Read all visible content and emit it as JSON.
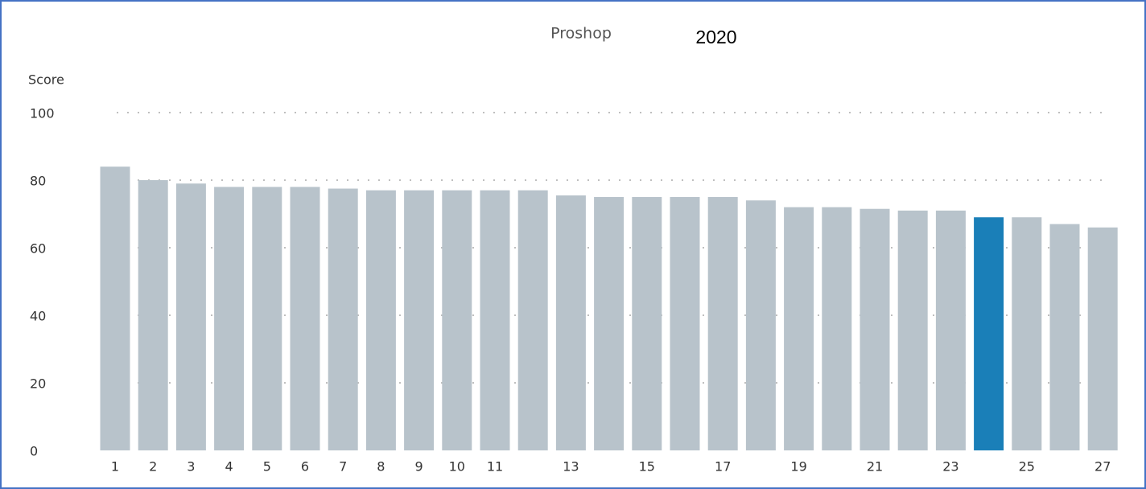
{
  "chart_data": {
    "type": "bar",
    "title": "Proshop",
    "subtitle": "2020",
    "y_label": "Score",
    "categories": [
      "1",
      "2",
      "3",
      "4",
      "5",
      "6",
      "7",
      "8",
      "9",
      "10",
      "11",
      null,
      "13",
      null,
      "15",
      null,
      "17",
      null,
      "19",
      null,
      "21",
      null,
      "23",
      null,
      "25",
      null,
      "27"
    ],
    "values": [
      84,
      80,
      79,
      78,
      78,
      78,
      77.5,
      77,
      77,
      77,
      77,
      77,
      75.5,
      75,
      75,
      75,
      75,
      74,
      72,
      72,
      71.5,
      71,
      71,
      69,
      69,
      67,
      66
    ],
    "colors": [
      "#b8c3cb",
      "#b8c3cb",
      "#b8c3cb",
      "#b8c3cb",
      "#b8c3cb",
      "#b8c3cb",
      "#b8c3cb",
      "#b8c3cb",
      "#b8c3cb",
      "#b8c3cb",
      "#b8c3cb",
      "#b8c3cb",
      "#b8c3cb",
      "#b8c3cb",
      "#b8c3cb",
      "#b8c3cb",
      "#b8c3cb",
      "#b8c3cb",
      "#b8c3cb",
      "#b8c3cb",
      "#b8c3cb",
      "#b8c3cb",
      "#b8c3cb",
      "#1a7fb8",
      "#b8c3cb",
      "#b8c3cb",
      "#b8c3cb"
    ],
    "ylim": [
      0,
      100
    ],
    "yticks": [
      0,
      20,
      40,
      60,
      80,
      100
    ],
    "grid": true
  }
}
